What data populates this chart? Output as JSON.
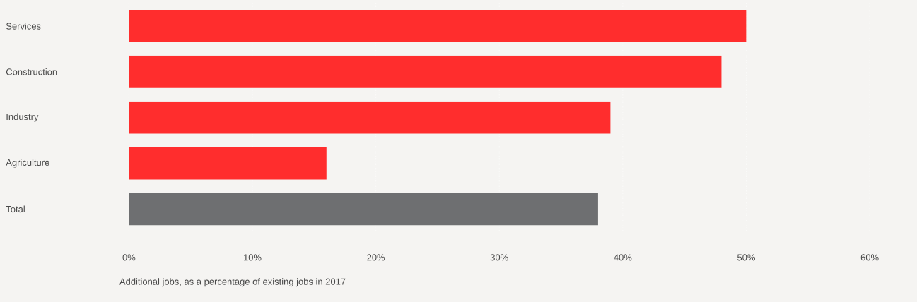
{
  "chart_data": {
    "type": "bar",
    "orientation": "horizontal",
    "categories": [
      "Services",
      "Construction",
      "Industry",
      "Agriculture",
      "Total"
    ],
    "values": [
      50,
      48,
      39,
      16,
      38
    ],
    "colors": [
      "#ff2d2d",
      "#ff2d2d",
      "#ff2d2d",
      "#ff2d2d",
      "#6e6f71"
    ],
    "xlabel": "Additional jobs, as a percentage of existing jobs in 2017",
    "xlim": [
      0,
      60
    ],
    "xticks": [
      {
        "value": 0,
        "label": "0%"
      },
      {
        "value": 10,
        "label": "10%"
      },
      {
        "value": 20,
        "label": "20%"
      },
      {
        "value": 30,
        "label": "30%"
      },
      {
        "value": 40,
        "label": "40%"
      },
      {
        "value": 50,
        "label": "50%"
      },
      {
        "value": 60,
        "label": "60%"
      }
    ],
    "grid": "x"
  }
}
